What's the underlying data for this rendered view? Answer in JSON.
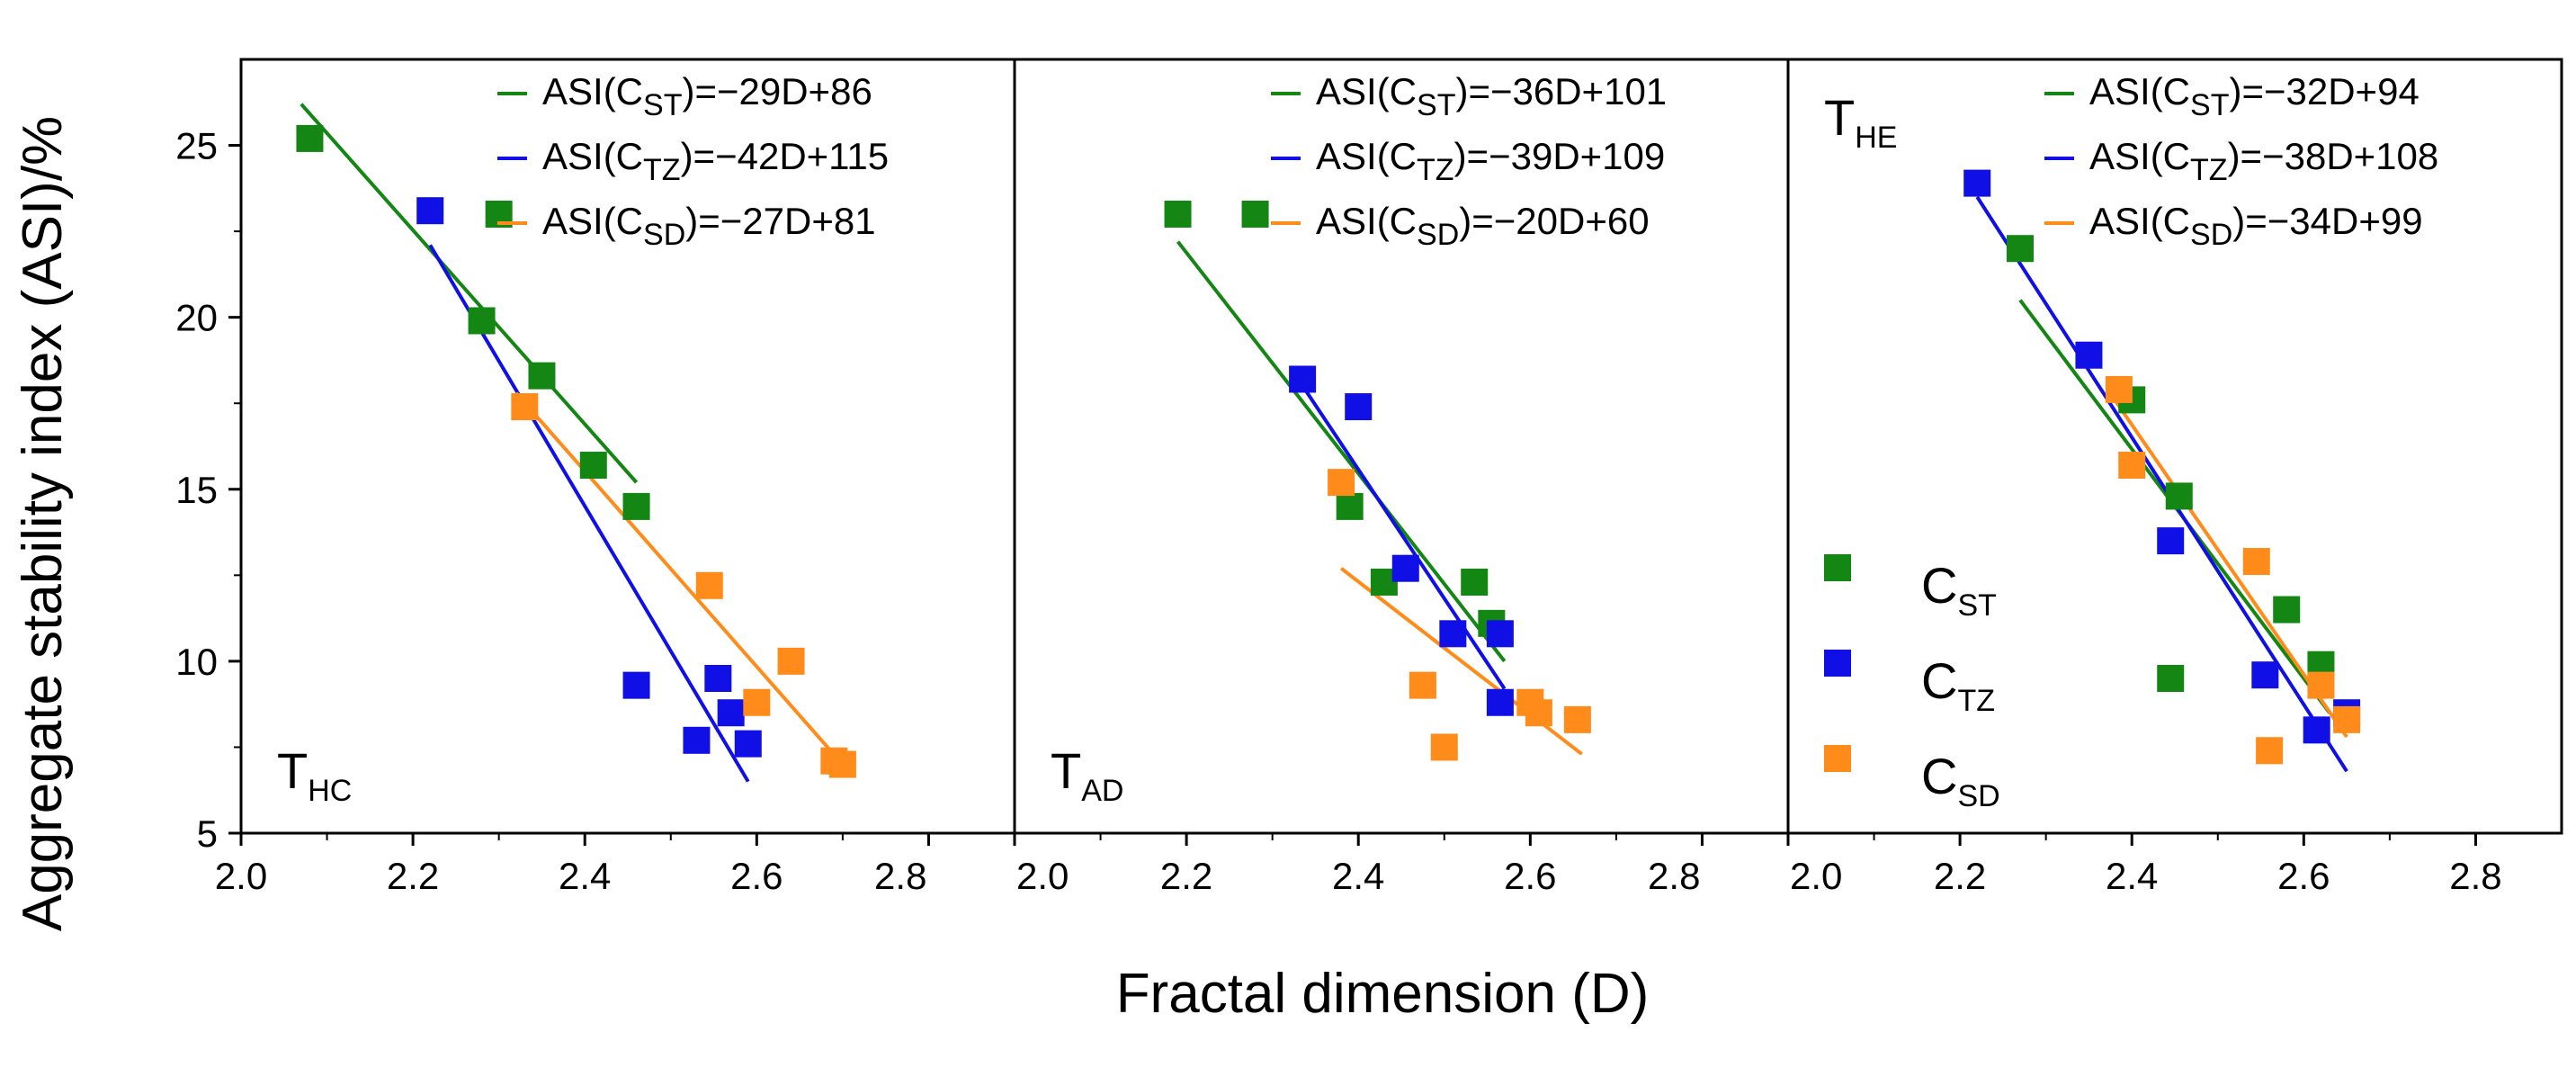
{
  "chart_data": {
    "type": "scatter",
    "xlabel": "Fractal dimension (D)",
    "ylabel": "Aggregate stability index (ASI)/%",
    "xlim": [
      2.0,
      2.9
    ],
    "ylim": [
      5,
      27.5
    ],
    "x_ticks": [
      "2.0",
      "2.2",
      "2.4",
      "2.6",
      "2.8"
    ],
    "y_ticks": [
      "5",
      "10",
      "15",
      "20",
      "25"
    ],
    "series_styles": [
      {
        "key": "CST",
        "name": "C",
        "sub": "ST",
        "color": "#138613"
      },
      {
        "key": "CTZ",
        "name": "C",
        "sub": "TZ",
        "color": "#0f0fe6"
      },
      {
        "key": "CSD",
        "name": "C",
        "sub": "SD",
        "color": "#ff8c1a"
      }
    ],
    "legend": {
      "panel": 2,
      "entries": [
        {
          "series": "CST",
          "label": "C",
          "sub": "ST"
        },
        {
          "series": "CTZ",
          "label": "C",
          "sub": "TZ"
        },
        {
          "series": "CSD",
          "label": "C",
          "sub": "SD"
        }
      ]
    },
    "panels": [
      {
        "label": "T",
        "label_sub": "HC",
        "show_last_tick": false,
        "equations": [
          {
            "series": "CST",
            "pre": "ASI(C",
            "sub": "ST",
            "post": ")=−29D+86"
          },
          {
            "series": "CTZ",
            "pre": "ASI(C",
            "sub": "TZ",
            "post": ")=−42D+115"
          },
          {
            "series": "CSD",
            "pre": "ASI(C",
            "sub": "SD",
            "post": ")=−27D+81"
          }
        ],
        "fit_lines": [
          {
            "series": "CST",
            "x": [
              2.07,
              2.46
            ],
            "y": [
              26.2,
              15.2
            ]
          },
          {
            "series": "CTZ",
            "x": [
              2.22,
              2.59
            ],
            "y": [
              22.1,
              6.5
            ]
          },
          {
            "series": "CSD",
            "x": [
              2.32,
              2.7
            ],
            "y": [
              17.8,
              7.0
            ]
          }
        ],
        "points": [
          {
            "series": "CST",
            "x": 2.08,
            "y": 25.2
          },
          {
            "series": "CST",
            "x": 2.3,
            "y": 23.0
          },
          {
            "series": "CST",
            "x": 2.28,
            "y": 19.9
          },
          {
            "series": "CST",
            "x": 2.35,
            "y": 18.3
          },
          {
            "series": "CST",
            "x": 2.41,
            "y": 15.7
          },
          {
            "series": "CST",
            "x": 2.46,
            "y": 14.5
          },
          {
            "series": "CTZ",
            "x": 2.22,
            "y": 23.1
          },
          {
            "series": "CTZ",
            "x": 2.46,
            "y": 9.3
          },
          {
            "series": "CTZ",
            "x": 2.53,
            "y": 7.7
          },
          {
            "series": "CTZ",
            "x": 2.555,
            "y": 9.5
          },
          {
            "series": "CTZ",
            "x": 2.57,
            "y": 8.5
          },
          {
            "series": "CTZ",
            "x": 2.59,
            "y": 7.6
          },
          {
            "series": "CSD",
            "x": 2.33,
            "y": 17.4
          },
          {
            "series": "CSD",
            "x": 2.545,
            "y": 12.2
          },
          {
            "series": "CSD",
            "x": 2.6,
            "y": 8.8
          },
          {
            "series": "CSD",
            "x": 2.64,
            "y": 10.0
          },
          {
            "series": "CSD",
            "x": 2.69,
            "y": 7.1
          },
          {
            "series": "CSD",
            "x": 2.7,
            "y": 7.0
          }
        ]
      },
      {
        "label": "T",
        "label_sub": "AD",
        "show_last_tick": false,
        "equations": [
          {
            "series": "CST",
            "pre": "ASI(C",
            "sub": "ST",
            "post": ")=−36D+101"
          },
          {
            "series": "CTZ",
            "pre": "ASI(C",
            "sub": "TZ",
            "post": ")=−39D+109"
          },
          {
            "series": "CSD",
            "pre": "ASI(C",
            "sub": "SD",
            "post": ")=−20D+60"
          }
        ],
        "fit_lines": [
          {
            "series": "CST",
            "x": [
              2.19,
              2.57
            ],
            "y": [
              22.2,
              10.0
            ]
          },
          {
            "series": "CTZ",
            "x": [
              2.33,
              2.57
            ],
            "y": [
              18.2,
              9.2
            ]
          },
          {
            "series": "CSD",
            "x": [
              2.38,
              2.66
            ],
            "y": [
              12.7,
              7.3
            ]
          }
        ],
        "points": [
          {
            "series": "CST",
            "x": 2.19,
            "y": 23.0
          },
          {
            "series": "CST",
            "x": 2.28,
            "y": 23.0
          },
          {
            "series": "CST",
            "x": 2.39,
            "y": 14.5
          },
          {
            "series": "CST",
            "x": 2.43,
            "y": 12.3
          },
          {
            "series": "CST",
            "x": 2.535,
            "y": 12.3
          },
          {
            "series": "CST",
            "x": 2.555,
            "y": 11.1
          },
          {
            "series": "CTZ",
            "x": 2.335,
            "y": 18.2
          },
          {
            "series": "CTZ",
            "x": 2.4,
            "y": 17.4
          },
          {
            "series": "CTZ",
            "x": 2.455,
            "y": 12.7
          },
          {
            "series": "CTZ",
            "x": 2.51,
            "y": 10.8
          },
          {
            "series": "CTZ",
            "x": 2.565,
            "y": 10.8
          },
          {
            "series": "CTZ",
            "x": 2.565,
            "y": 8.8
          },
          {
            "series": "CSD",
            "x": 2.38,
            "y": 15.2
          },
          {
            "series": "CSD",
            "x": 2.475,
            "y": 9.3
          },
          {
            "series": "CSD",
            "x": 2.5,
            "y": 7.5
          },
          {
            "series": "CSD",
            "x": 2.6,
            "y": 8.8
          },
          {
            "series": "CSD",
            "x": 2.61,
            "y": 8.5
          },
          {
            "series": "CSD",
            "x": 2.655,
            "y": 8.3
          }
        ]
      },
      {
        "label": "T",
        "label_sub": "HE",
        "show_last_tick": true,
        "equations": [
          {
            "series": "CST",
            "pre": "ASI(C",
            "sub": "ST",
            "post": ")=−32D+94"
          },
          {
            "series": "CTZ",
            "pre": "ASI(C",
            "sub": "TZ",
            "post": ")=−38D+108"
          },
          {
            "series": "CSD",
            "pre": "ASI(C",
            "sub": "SD",
            "post": ")=−34D+99"
          }
        ],
        "fit_lines": [
          {
            "series": "CST",
            "x": [
              2.27,
              2.63
            ],
            "y": [
              20.5,
              8.5
            ]
          },
          {
            "series": "CTZ",
            "x": [
              2.22,
              2.65
            ],
            "y": [
              23.5,
              6.8
            ]
          },
          {
            "series": "CSD",
            "x": [
              2.38,
              2.65
            ],
            "y": [
              17.6,
              7.8
            ]
          }
        ],
        "points": [
          {
            "series": "CST",
            "x": 2.27,
            "y": 22.0
          },
          {
            "series": "CST",
            "x": 2.4,
            "y": 17.6
          },
          {
            "series": "CST",
            "x": 2.445,
            "y": 9.5
          },
          {
            "series": "CST",
            "x": 2.455,
            "y": 14.8
          },
          {
            "series": "CST",
            "x": 2.58,
            "y": 11.5
          },
          {
            "series": "CST",
            "x": 2.62,
            "y": 9.9
          },
          {
            "series": "CTZ",
            "x": 2.22,
            "y": 23.9
          },
          {
            "series": "CTZ",
            "x": 2.35,
            "y": 18.9
          },
          {
            "series": "CTZ",
            "x": 2.445,
            "y": 13.5
          },
          {
            "series": "CTZ",
            "x": 2.555,
            "y": 9.6
          },
          {
            "series": "CTZ",
            "x": 2.615,
            "y": 8.0
          },
          {
            "series": "CTZ",
            "x": 2.65,
            "y": 8.5
          },
          {
            "series": "CSD",
            "x": 2.385,
            "y": 17.9
          },
          {
            "series": "CSD",
            "x": 2.4,
            "y": 15.7
          },
          {
            "series": "CSD",
            "x": 2.545,
            "y": 12.9
          },
          {
            "series": "CSD",
            "x": 2.56,
            "y": 7.4
          },
          {
            "series": "CSD",
            "x": 2.62,
            "y": 9.3
          },
          {
            "series": "CSD",
            "x": 2.65,
            "y": 8.3
          }
        ]
      }
    ]
  }
}
